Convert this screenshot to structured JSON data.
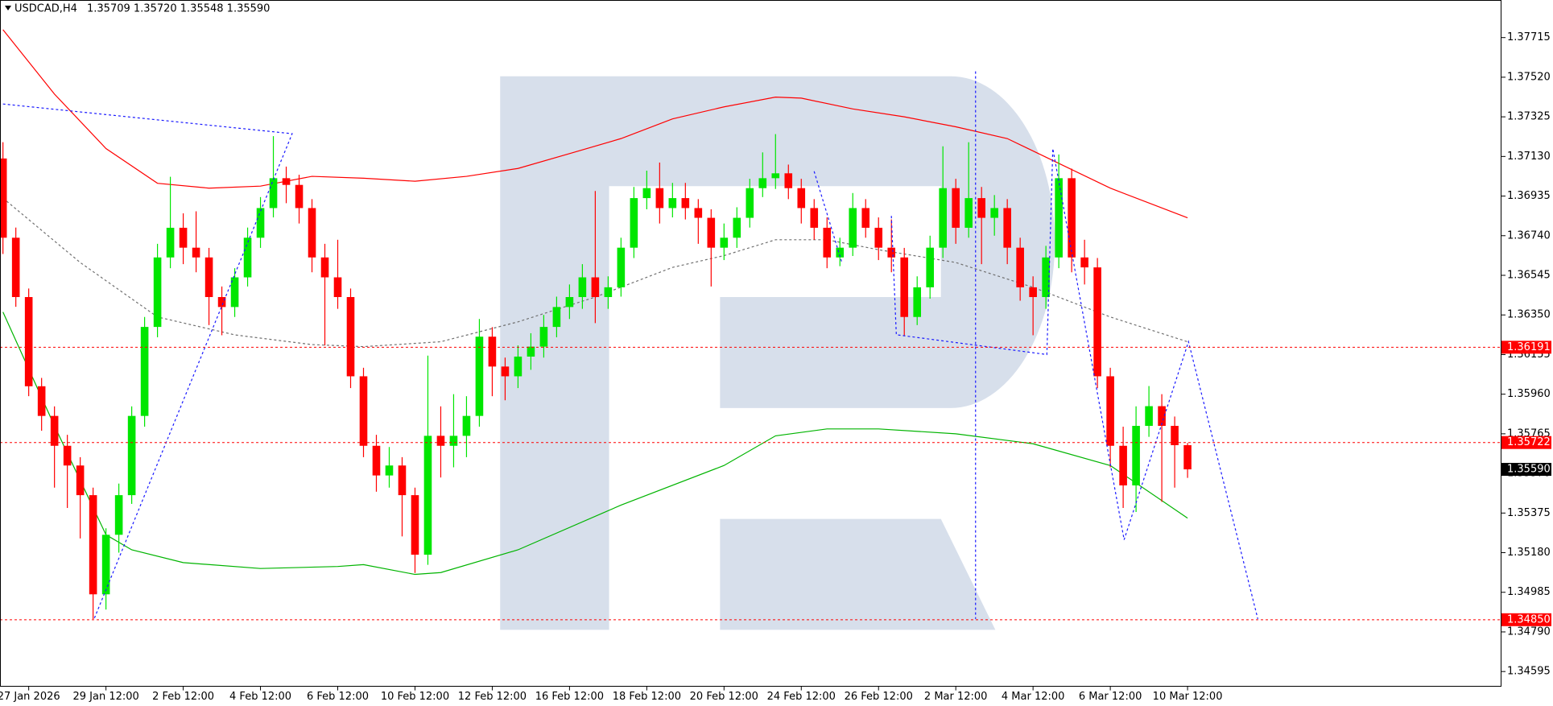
{
  "header": {
    "symbol": "USDCAD,H4",
    "quote": "1.35709 1.35720 1.35548 1.35590"
  },
  "chart_data": {
    "type": "candlestick",
    "up_color": "#00e600",
    "down_color": "#ff0000",
    "xlim": [
      -0.23,
      116.38
    ],
    "ylim": [
      1.34522,
      1.379
    ],
    "open": [
      1.3712,
      1.3673,
      1.36438,
      1.35999,
      1.35853,
      1.35706,
      1.35609,
      1.35463,
      1.34975,
      1.35268,
      1.35463,
      1.35853,
      1.36291,
      1.36633,
      1.36779,
      1.36681,
      1.36633,
      1.36438,
      1.36389,
      1.36535,
      1.3673,
      1.36876,
      1.37023,
      1.3699,
      1.36876,
      1.36633,
      1.36535,
      1.36438,
      1.36048,
      1.35706,
      1.3556,
      1.35609,
      1.35463,
      1.3517,
      1.35755,
      1.35706,
      1.35755,
      1.35853,
      1.36243,
      1.36096,
      1.36048,
      1.36145,
      1.36194,
      1.36291,
      1.36389,
      1.36438,
      1.36535,
      1.36438,
      1.36486,
      1.36681,
      1.36925,
      1.36974,
      1.36876,
      1.36925,
      1.36876,
      1.36828,
      1.36681,
      1.3673,
      1.36828,
      1.36974,
      1.37023,
      1.37047,
      1.36974,
      1.36876,
      1.36779,
      1.36633,
      1.36681,
      1.36876,
      1.36779,
      1.36681,
      1.36633,
      1.3634,
      1.36486,
      1.36681,
      1.36974,
      1.36779,
      1.36925,
      1.36828,
      1.36876,
      1.36681,
      1.36486,
      1.36438,
      1.36633,
      1.37023,
      1.36633,
      1.36584,
      1.36048,
      1.35706,
      1.35511,
      1.35804,
      1.35901,
      1.35804,
      1.35709
    ],
    "high": [
      1.372,
      1.3678,
      1.3648,
      1.3604,
      1.359,
      1.3576,
      1.3565,
      1.355,
      1.353,
      1.3552,
      1.359,
      1.3634,
      1.367,
      1.3703,
      1.3685,
      1.3686,
      1.3668,
      1.3649,
      1.3658,
      1.3678,
      1.3693,
      1.3723,
      1.3708,
      1.3704,
      1.3692,
      1.367,
      1.3672,
      1.3648,
      1.3609,
      1.3576,
      1.357,
      1.3565,
      1.355,
      1.3615,
      1.359,
      1.3596,
      1.3595,
      1.3633,
      1.3629,
      1.3614,
      1.362,
      1.3626,
      1.3635,
      1.3644,
      1.365,
      1.366,
      1.3696,
      1.3654,
      1.3673,
      1.3698,
      1.3706,
      1.371,
      1.37,
      1.37,
      1.3692,
      1.3687,
      1.368,
      1.3688,
      1.3702,
      1.3715,
      1.3724,
      1.3709,
      1.3702,
      1.3692,
      1.3683,
      1.3673,
      1.3695,
      1.3692,
      1.3683,
      1.3682,
      1.3668,
      1.3654,
      1.3674,
      1.3718,
      1.3702,
      1.372,
      1.3698,
      1.3694,
      1.3692,
      1.3673,
      1.3654,
      1.3669,
      1.3714,
      1.3707,
      1.3672,
      1.3663,
      1.3609,
      1.358,
      1.359,
      1.36,
      1.3596,
      1.3585,
      1.3572
    ],
    "low": [
      1.3665,
      1.3639,
      1.3595,
      1.3578,
      1.355,
      1.354,
      1.3525,
      1.34853,
      1.349,
      1.3518,
      1.3542,
      1.358,
      1.3624,
      1.3658,
      1.366,
      1.3656,
      1.363,
      1.3625,
      1.3634,
      1.3649,
      1.3668,
      1.3683,
      1.369,
      1.368,
      1.3656,
      1.362,
      1.3638,
      1.3599,
      1.3565,
      1.3548,
      1.355,
      1.3526,
      1.3508,
      1.3512,
      1.3555,
      1.356,
      1.3565,
      1.358,
      1.3595,
      1.3593,
      1.3599,
      1.3608,
      1.3614,
      1.3624,
      1.3633,
      1.3638,
      1.3631,
      1.3638,
      1.3644,
      1.3663,
      1.3687,
      1.368,
      1.3683,
      1.3682,
      1.367,
      1.3649,
      1.3662,
      1.3668,
      1.3678,
      1.3693,
      1.3697,
      1.3692,
      1.368,
      1.3672,
      1.3658,
      1.3659,
      1.3664,
      1.3673,
      1.3662,
      1.3656,
      1.3625,
      1.363,
      1.3643,
      1.3663,
      1.367,
      1.3673,
      1.366,
      1.3674,
      1.366,
      1.3642,
      1.3625,
      1.3638,
      1.3658,
      1.3656,
      1.365,
      1.3599,
      1.356,
      1.354,
      1.3538,
      1.3575,
      1.3543,
      1.355,
      1.35548
    ],
    "close": [
      1.3673,
      1.36438,
      1.35999,
      1.35853,
      1.35706,
      1.35609,
      1.35463,
      1.34975,
      1.35268,
      1.35463,
      1.35853,
      1.36291,
      1.36633,
      1.36779,
      1.36681,
      1.36633,
      1.36438,
      1.36389,
      1.36535,
      1.3673,
      1.36876,
      1.37023,
      1.3699,
      1.36876,
      1.36633,
      1.36535,
      1.36438,
      1.36048,
      1.35706,
      1.3556,
      1.35609,
      1.35463,
      1.3517,
      1.35755,
      1.35706,
      1.35755,
      1.35853,
      1.36243,
      1.36096,
      1.36048,
      1.36145,
      1.36194,
      1.36291,
      1.36389,
      1.36438,
      1.36535,
      1.36438,
      1.36486,
      1.36681,
      1.36925,
      1.36974,
      1.36876,
      1.36925,
      1.36876,
      1.36828,
      1.36681,
      1.3673,
      1.36828,
      1.36974,
      1.37023,
      1.37047,
      1.36974,
      1.36876,
      1.36779,
      1.36633,
      1.36681,
      1.36876,
      1.36779,
      1.36681,
      1.36633,
      1.3634,
      1.36486,
      1.36681,
      1.36974,
      1.36779,
      1.36925,
      1.36828,
      1.36876,
      1.36681,
      1.36486,
      1.36438,
      1.36633,
      1.37023,
      1.36633,
      1.36584,
      1.36048,
      1.35706,
      1.35511,
      1.35804,
      1.35901,
      1.35804,
      1.35709,
      1.3559
    ],
    "lines": [
      {
        "color": "#ff0000",
        "dashed": false,
        "x": [
          0,
          4,
          8,
          12,
          16,
          20,
          24,
          28,
          32,
          36,
          40,
          44,
          48,
          52,
          56,
          60,
          62,
          66,
          70,
          74,
          78,
          82,
          86,
          92
        ],
        "values": [
          1.37754,
          1.37437,
          1.37169,
          1.36998,
          1.36974,
          1.36984,
          1.37032,
          1.37023,
          1.37008,
          1.37032,
          1.37071,
          1.37144,
          1.37218,
          1.37315,
          1.37374,
          1.37422,
          1.37417,
          1.37364,
          1.37325,
          1.37276,
          1.37218,
          1.37096,
          1.36974,
          1.36828
        ]
      },
      {
        "color": "#00b400",
        "dashed": false,
        "x": [
          0,
          4,
          8,
          10,
          14,
          20,
          26,
          28,
          32,
          34,
          40,
          48,
          56,
          60,
          64,
          68,
          74,
          80,
          86,
          92
        ],
        "values": [
          1.36364,
          1.35804,
          1.35268,
          1.35194,
          1.35131,
          1.35102,
          1.35112,
          1.35121,
          1.35073,
          1.35082,
          1.35194,
          1.35414,
          1.35609,
          1.35755,
          1.35789,
          1.35789,
          1.35765,
          1.35716,
          1.35609,
          1.3535
        ]
      },
      {
        "color": "#707070",
        "dashed": true,
        "x": [
          0,
          6,
          12,
          18,
          24,
          28,
          34,
          40,
          46,
          52,
          56,
          60,
          64,
          68,
          74,
          80,
          86,
          92
        ],
        "values": [
          1.36925,
          1.36608,
          1.3634,
          1.36252,
          1.36204,
          1.36194,
          1.36218,
          1.36316,
          1.36438,
          1.36584,
          1.36642,
          1.3672,
          1.3672,
          1.36671,
          1.36608,
          1.36486,
          1.3634,
          1.36218
        ]
      }
    ],
    "yticks": [
      1.37715,
      {
        "value": 1.3752,
        "label": "1.37520"
      },
      1.37325,
      {
        "value": 1.3713,
        "label": "1.37130"
      },
      1.36935,
      {
        "value": 1.3674,
        "label": "1.36740"
      },
      1.36545,
      {
        "value": 1.3635,
        "label": "1.36350"
      },
      1.36155,
      {
        "value": 1.3596,
        "label": "1.35960"
      },
      1.35765,
      {
        "value": 1.3557,
        "label": "1.35570"
      },
      1.35375,
      {
        "value": 1.3518,
        "label": "1.35180"
      },
      1.34985,
      {
        "value": 1.3479,
        "label": "1.34790"
      },
      1.34595
    ],
    "xticks": [
      {
        "value": 2,
        "label": "27 Jan 2026"
      },
      {
        "value": 8,
        "label": "29 Jan 12:00"
      },
      {
        "value": 14,
        "label": "2 Feb 12:00"
      },
      {
        "value": 20,
        "label": "4 Feb 12:00"
      },
      {
        "value": 26,
        "label": "6 Feb 12:00"
      },
      {
        "value": 32,
        "label": "10 Feb 12:00"
      },
      {
        "value": 38,
        "label": "12 Feb 12:00"
      },
      {
        "value": 44,
        "label": "16 Feb 12:00"
      },
      {
        "value": 50,
        "label": "18 Feb 12:00"
      },
      {
        "value": 56,
        "label": "20 Feb 12:00"
      },
      {
        "value": 62,
        "label": "24 Feb 12:00"
      },
      {
        "value": 68,
        "label": "26 Feb 12:00"
      },
      {
        "value": 74,
        "label": "2 Mar 12:00"
      },
      {
        "value": 80,
        "label": "4 Mar 12:00"
      },
      {
        "value": 86,
        "label": "6 Mar 12:00"
      },
      {
        "value": 92,
        "label": "10 Mar 12:00"
      }
    ],
    "levels": [
      1.36191,
      1.35722,
      {
        "value": 1.3485,
        "label": "1.34850"
      }
    ],
    "level_color": "#ff0000",
    "last_price": {
      "value": 1.3559,
      "label": "1.35590"
    }
  }
}
